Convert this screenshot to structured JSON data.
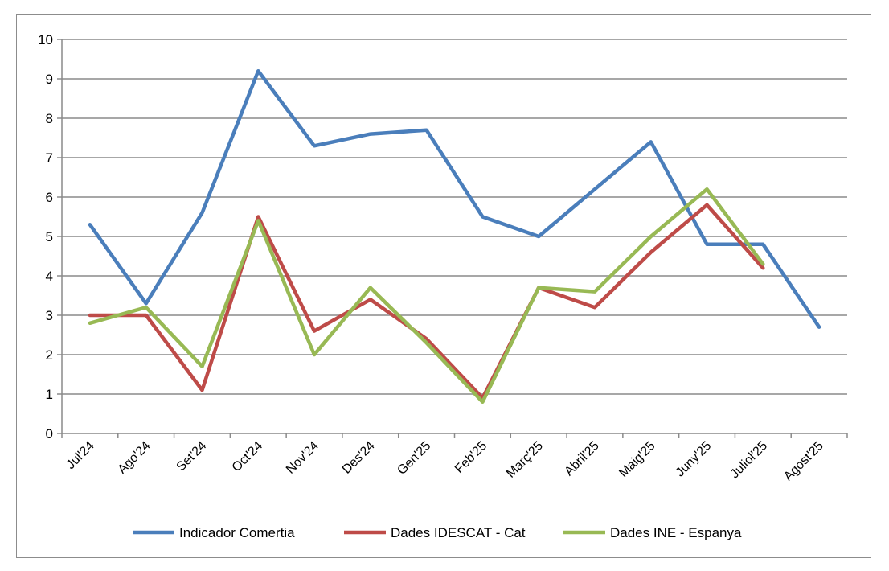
{
  "chart_data": {
    "type": "line",
    "title": "",
    "xlabel": "",
    "ylabel": "",
    "ylim": [
      0,
      10
    ],
    "yticks": [
      "0",
      "1",
      "2",
      "3",
      "4",
      "5",
      "6",
      "7",
      "8",
      "9",
      "10"
    ],
    "grid": true,
    "legend_position": "bottom",
    "categories": [
      "Jul'24",
      "Ago'24",
      "Set'24",
      "Oct'24",
      "Nov'24",
      "Des'24",
      "Gen'25",
      "Feb'25",
      "Març'25",
      "Abril'25",
      "Maig'25",
      "Juny'25",
      "Juliol'25",
      "Agost'25"
    ],
    "series": [
      {
        "name": "Indicador Comertia",
        "color": "#4a7ebb",
        "values": [
          5.3,
          3.3,
          5.6,
          9.2,
          7.3,
          7.6,
          7.7,
          5.5,
          5.0,
          6.2,
          7.4,
          4.8,
          4.8,
          2.7
        ]
      },
      {
        "name": "Dades IDESCAT - Cat",
        "color": "#be4b48",
        "values": [
          3.0,
          3.0,
          1.1,
          5.5,
          2.6,
          3.4,
          2.4,
          0.9,
          3.7,
          3.2,
          4.6,
          5.8,
          4.2,
          null
        ]
      },
      {
        "name": "Dades INE - Espanya",
        "color": "#98b954",
        "values": [
          2.8,
          3.2,
          1.7,
          5.4,
          2.0,
          3.7,
          2.3,
          0.8,
          3.7,
          3.6,
          5.0,
          6.2,
          4.3,
          null
        ]
      }
    ]
  }
}
